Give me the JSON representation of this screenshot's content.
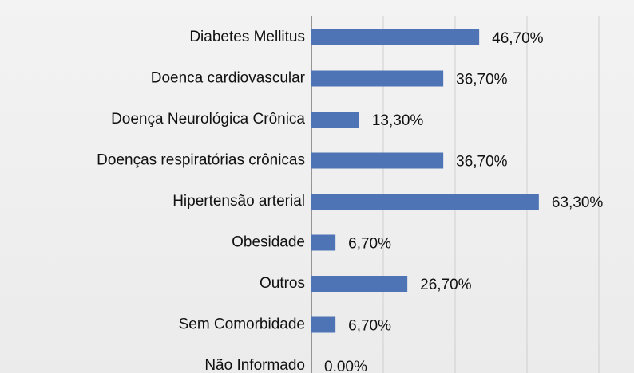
{
  "chart_data": {
    "type": "bar",
    "orientation": "horizontal",
    "categories": [
      "Diabetes Mellitus",
      "Doenca cardiovascular",
      "Doença Neurológica Crônica",
      "Doenças respiratórias crônicas",
      "Hipertensão arterial",
      "Obesidade",
      "Outros",
      "Sem Comorbidade",
      "Não Informado"
    ],
    "values": [
      46.7,
      36.7,
      13.3,
      36.7,
      63.3,
      6.7,
      26.7,
      6.7,
      0
    ],
    "value_labels": [
      "46,70%",
      "36,70%",
      "13,30%",
      "36,70%",
      "63,30%",
      "6,70%",
      "26,70%",
      "6,70%",
      "0.00%"
    ],
    "color": "#4f74b5",
    "xlim": [
      0,
      80
    ],
    "xticks": [
      0,
      20,
      40,
      60,
      80
    ],
    "grid": true
  }
}
